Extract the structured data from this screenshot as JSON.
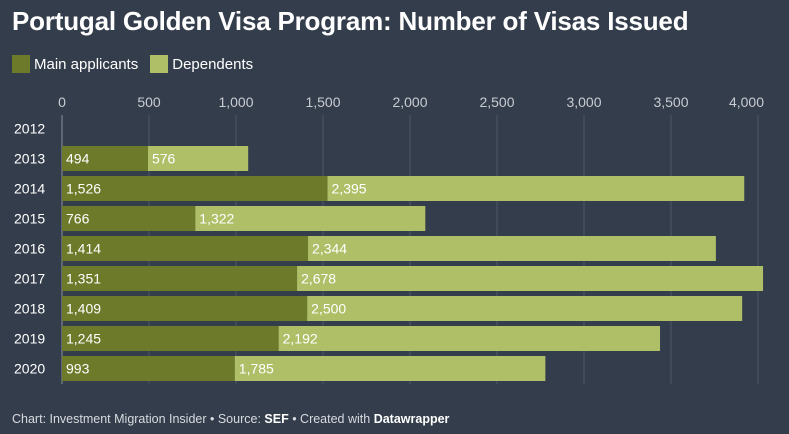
{
  "header": {
    "title": "Portugal Golden Visa Program: Number of Visas Issued"
  },
  "legend": {
    "items": [
      {
        "label": "Main applicants",
        "color": "#6d7a2a"
      },
      {
        "label": "Dependents",
        "color": "#aebf68"
      }
    ]
  },
  "chart_data": {
    "type": "bar",
    "orientation": "horizontal",
    "stacked": true,
    "title": "Portugal Golden Visa Program: Number of Visas Issued",
    "categories": [
      "2012",
      "2013",
      "2014",
      "2015",
      "2016",
      "2017",
      "2018",
      "2019",
      "2020"
    ],
    "series": [
      {
        "name": "Main applicants",
        "color": "#6d7a2a",
        "values": [
          0,
          494,
          1526,
          766,
          1414,
          1351,
          1409,
          1245,
          993
        ],
        "labels": [
          "",
          "494",
          "1,526",
          "766",
          "1,414",
          "1,351",
          "1,409",
          "1,245",
          "993"
        ]
      },
      {
        "name": "Dependents",
        "color": "#aebf68",
        "values": [
          0,
          576,
          2395,
          1322,
          2344,
          2678,
          2500,
          2192,
          1785
        ],
        "labels": [
          "",
          "576",
          "2,395",
          "1,322",
          "2,344",
          "2,678",
          "2,500",
          "2,192",
          "1,785"
        ]
      }
    ],
    "xlim": [
      0,
      4000
    ],
    "ticks": [
      0,
      500,
      1000,
      1500,
      2000,
      2500,
      3000,
      3500,
      4000
    ],
    "tick_labels": [
      "0",
      "500",
      "1,000",
      "1,500",
      "2,000",
      "2,500",
      "3,000",
      "3,500",
      "4,000"
    ],
    "grid": true,
    "legend_position": "top-left"
  },
  "footer": {
    "prefix": "Chart: Investment Migration Insider • Source: ",
    "source": "SEF",
    "middle": " • Created with ",
    "tool": "Datawrapper"
  }
}
